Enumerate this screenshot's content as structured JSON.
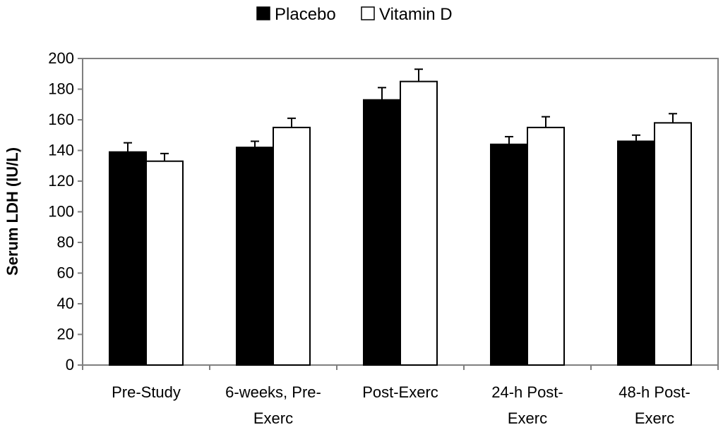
{
  "chart_data": {
    "type": "bar",
    "title": "",
    "xlabel": "",
    "ylabel": "Serum LDH (IU/L)",
    "ylim": [
      0,
      200
    ],
    "yticks": [
      0,
      20,
      40,
      60,
      80,
      100,
      120,
      140,
      160,
      180,
      200
    ],
    "legend_position": "top-center",
    "categories": [
      [
        "Pre-Study"
      ],
      [
        "6-weeks, Pre-",
        "Exerc"
      ],
      [
        "Post-Exerc"
      ],
      [
        "24-h Post-",
        "Exerc"
      ],
      [
        "48-h Post-",
        "Exerc"
      ]
    ],
    "series": [
      {
        "name": "Placebo",
        "fill": "#000000",
        "values": [
          139,
          142,
          173,
          144,
          146
        ],
        "errors": [
          6,
          4,
          8,
          5,
          4
        ]
      },
      {
        "name": "Vitamin D",
        "fill": "#ffffff",
        "values": [
          133,
          155,
          185,
          155,
          158
        ],
        "errors": [
          5,
          6,
          8,
          7,
          6
        ]
      }
    ]
  }
}
